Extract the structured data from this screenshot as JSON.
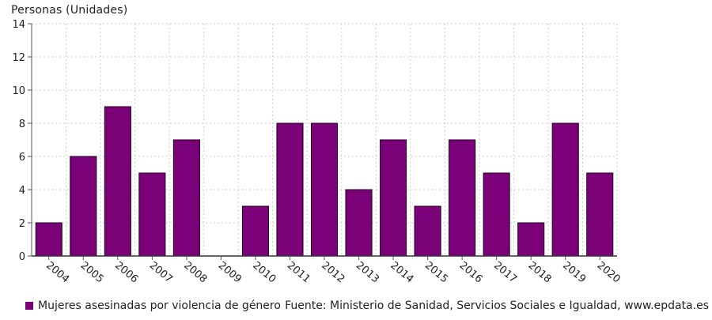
{
  "chart_data": {
    "type": "bar",
    "ylabel": "Personas (Unidades)",
    "xlabel": "",
    "categories": [
      "2004",
      "2005",
      "2006",
      "2007",
      "2008",
      "2009",
      "2010",
      "2011",
      "2012",
      "2013",
      "2014",
      "2015",
      "2016",
      "2017",
      "2018",
      "2019",
      "2020"
    ],
    "series": [
      {
        "name": "Mujeres asesinadas por violencia de género",
        "values": [
          2,
          6,
          9,
          5,
          7,
          0,
          3,
          8,
          8,
          4,
          7,
          3,
          7,
          5,
          2,
          8,
          5
        ]
      }
    ],
    "ylim": [
      0,
      14
    ],
    "yticks": [
      0,
      2,
      4,
      6,
      8,
      10,
      12,
      14
    ],
    "grid": true,
    "legend_position": "bottom-left",
    "bar_color": "#7a0177",
    "source": "Fuente: Ministerio de Sanidad, Servicios Sociales e Igualdad, www.epdata.es"
  }
}
